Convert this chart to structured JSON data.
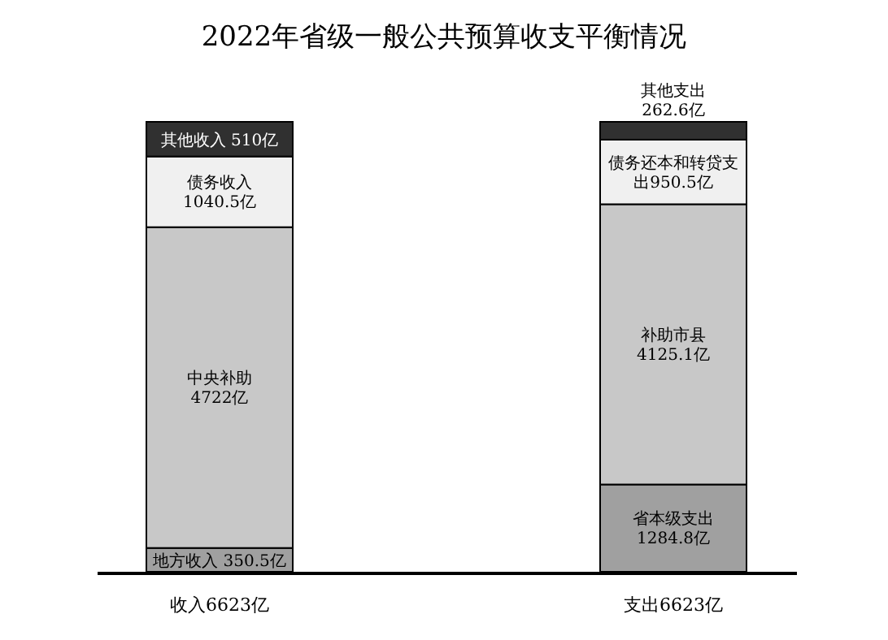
{
  "chart_data": {
    "type": "bar",
    "title": "2022年省级一般公共预算收支平衡情况",
    "stacked": true,
    "categories": [
      "收入6623亿",
      "支出6623亿"
    ],
    "series": [
      {
        "color": "#a0a0a0",
        "values": [
          350.5,
          1284.8
        ],
        "value_labels": [
          "地方收入\n350.5亿",
          "省本级支出\n1284.8亿"
        ]
      },
      {
        "color": "#c8c8c8",
        "values": [
          4722,
          4125.1
        ],
        "value_labels": [
          "中央补助\n4722亿",
          "补助市县\n4125.1亿"
        ]
      },
      {
        "color": "#f0f0f0",
        "values": [
          1040.5,
          950.5
        ],
        "value_labels": [
          "债务收入\n1040.5亿",
          "债务还本和转贷支出950.5亿"
        ]
      },
      {
        "color": "#303030",
        "values": [
          510,
          262.6
        ],
        "value_labels": [
          "其他收入\n510亿",
          "其他支出\n262.6亿"
        ]
      }
    ]
  }
}
